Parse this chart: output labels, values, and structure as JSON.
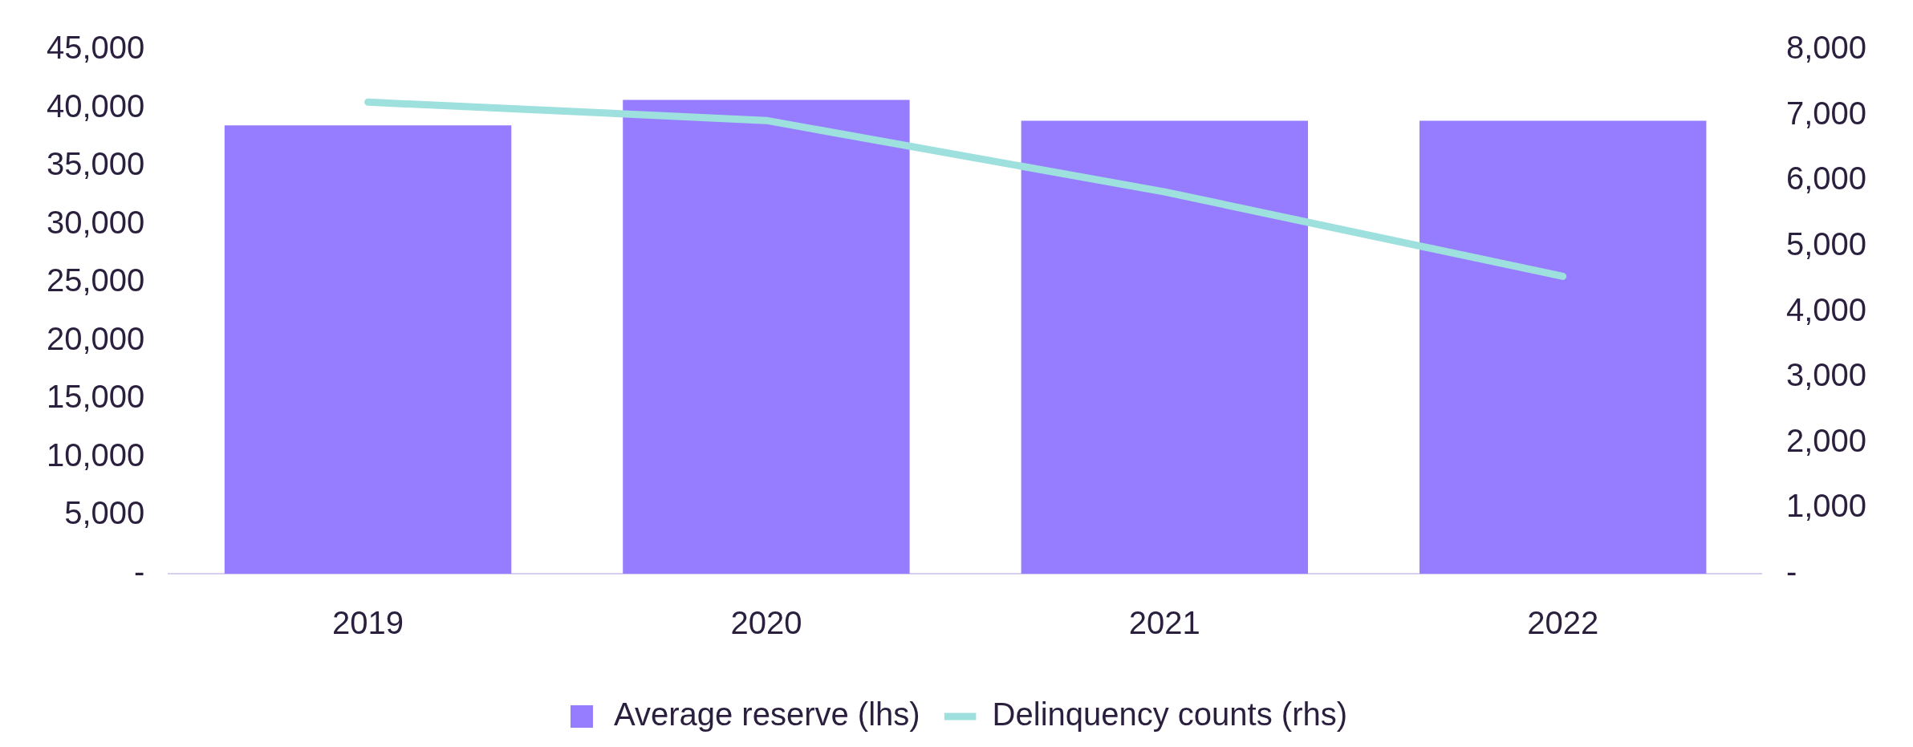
{
  "chart_data": {
    "type": "bar",
    "categories": [
      "2019",
      "2020",
      "2021",
      "2022"
    ],
    "series": [
      {
        "name": "Average reserve (lhs)",
        "color": "#967dff",
        "values": [
          38500,
          40700,
          38900,
          38900
        ]
      },
      {
        "name": "Delinquency counts (rhs)",
        "type": "line",
        "axis": "y2",
        "color": "#9ee0dd",
        "values": [
          7200,
          6920,
          5830,
          4540
        ]
      }
    ],
    "ylim": [
      0,
      45000
    ],
    "yticks": [
      {
        "value": 0,
        "label": "-"
      },
      {
        "value": 5000,
        "label": "5,000"
      },
      {
        "value": 10000,
        "label": "10,000"
      },
      {
        "value": 15000,
        "label": "15,000"
      },
      {
        "value": 20000,
        "label": "20,000"
      },
      {
        "value": 25000,
        "label": "25,000"
      },
      {
        "value": 30000,
        "label": "30,000"
      },
      {
        "value": 35000,
        "label": "35,000"
      },
      {
        "value": 40000,
        "label": "40,000"
      },
      {
        "value": 45000,
        "label": "45,000"
      }
    ],
    "y2lim": [
      0,
      8000
    ],
    "y2ticks": [
      {
        "value": 0,
        "label": "-"
      },
      {
        "value": 1000,
        "label": "1,000"
      },
      {
        "value": 2000,
        "label": "2,000"
      },
      {
        "value": 3000,
        "label": "3,000"
      },
      {
        "value": 4000,
        "label": "4,000"
      },
      {
        "value": 5000,
        "label": "5,000"
      },
      {
        "value": 6000,
        "label": "6,000"
      },
      {
        "value": 7000,
        "label": "7,000"
      },
      {
        "value": 8000,
        "label": "8,000"
      }
    ],
    "grid": false,
    "legend": "bottom",
    "marker": "none"
  }
}
